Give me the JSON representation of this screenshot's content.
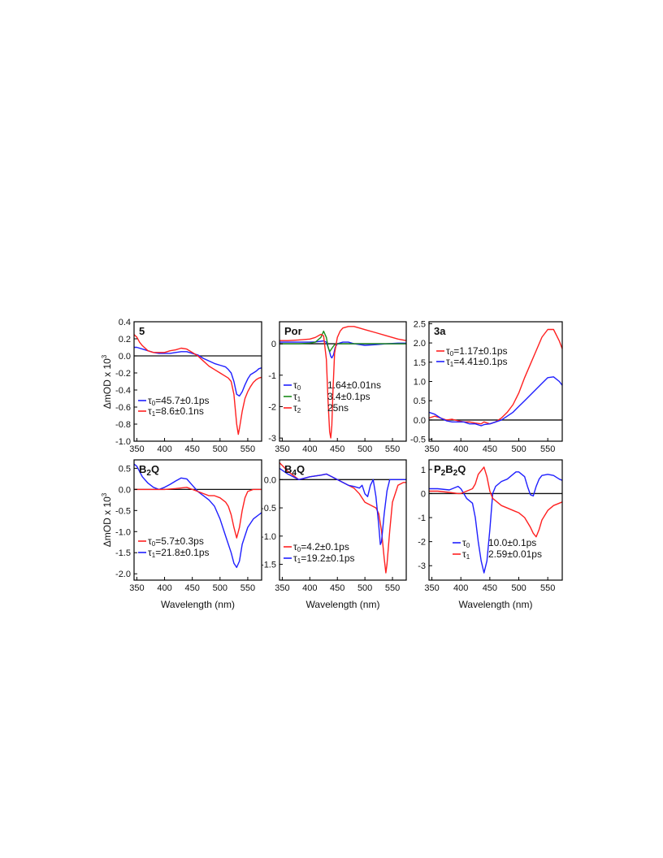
{
  "figure": {
    "y_axis_label": "ΔmOD x 10",
    "y_axis_label_sup": "3",
    "x_axis_label": "Wavelength (nm)"
  },
  "chart_data": [
    {
      "type": "line",
      "title": "5",
      "xlim": [
        345,
        575
      ],
      "ylim": [
        -1.0,
        0.4
      ],
      "xticks": [
        350,
        400,
        450,
        500,
        550
      ],
      "yticks": [
        0.4,
        0.2,
        0.0,
        -0.2,
        -0.4,
        -0.6,
        -0.8,
        -1.0
      ],
      "ytick_labels": [
        "0.4",
        "0.2",
        "0.0",
        "-0.2",
        "-0.4",
        "-0.6",
        "-0.8",
        "-1.0"
      ],
      "legend": [
        {
          "symbol": "τ",
          "sub": "0",
          "text": "=45.7±0.1ps",
          "color": "#1f1fff"
        },
        {
          "symbol": "τ",
          "sub": "1",
          "text": "=8.6±0.1ns",
          "color": "#ff2020"
        }
      ],
      "series": [
        {
          "color": "#1f1fff",
          "x": [
            345,
            350,
            360,
            370,
            380,
            390,
            400,
            410,
            420,
            430,
            440,
            450,
            460,
            470,
            480,
            490,
            500,
            510,
            515,
            520,
            525,
            530,
            535,
            540,
            545,
            550,
            555,
            560,
            565,
            570,
            575
          ],
          "y": [
            0.1,
            0.1,
            0.08,
            0.06,
            0.04,
            0.03,
            0.03,
            0.03,
            0.04,
            0.05,
            0.05,
            0.03,
            0.01,
            -0.03,
            -0.06,
            -0.09,
            -0.11,
            -0.13,
            -0.16,
            -0.2,
            -0.3,
            -0.45,
            -0.47,
            -0.42,
            -0.34,
            -0.27,
            -0.22,
            -0.2,
            -0.18,
            -0.15,
            -0.14
          ]
        },
        {
          "color": "#ff2020",
          "x": [
            345,
            350,
            355,
            360,
            370,
            380,
            390,
            400,
            410,
            420,
            430,
            440,
            450,
            460,
            470,
            480,
            490,
            500,
            510,
            515,
            520,
            525,
            530,
            533,
            535,
            540,
            545,
            550,
            555,
            560,
            565,
            570,
            575
          ],
          "y": [
            0.25,
            0.22,
            0.16,
            0.12,
            0.06,
            0.04,
            0.04,
            0.04,
            0.06,
            0.07,
            0.09,
            0.08,
            0.04,
            0.0,
            -0.06,
            -0.12,
            -0.16,
            -0.2,
            -0.24,
            -0.26,
            -0.3,
            -0.45,
            -0.8,
            -0.92,
            -0.85,
            -0.65,
            -0.5,
            -0.42,
            -0.36,
            -0.31,
            -0.28,
            -0.26,
            -0.25
          ]
        }
      ]
    },
    {
      "type": "line",
      "title": "Por",
      "xlim": [
        345,
        575
      ],
      "ylim": [
        -3.1,
        0.7
      ],
      "xticks": [
        350,
        400,
        450,
        500,
        550
      ],
      "yticks": [
        0,
        -1,
        -2,
        -3
      ],
      "ytick_labels": [
        "0",
        "-1",
        "-2",
        "-3"
      ],
      "legend": [
        {
          "symbol": "τ",
          "sub": "0",
          "text": "1.64±0.01ns",
          "color": "#1f1fff"
        },
        {
          "symbol": "τ",
          "sub": "1",
          "text": "3.4±0.1ps",
          "color": "#1a8a1a"
        },
        {
          "symbol": "τ",
          "sub": "2",
          "text": "25ns",
          "color": "#ff2020"
        }
      ],
      "series": [
        {
          "color": "#1f1fff",
          "x": [
            345,
            360,
            380,
            400,
            410,
            420,
            425,
            430,
            435,
            438,
            440,
            443,
            446,
            450,
            460,
            470,
            480,
            500,
            520,
            540,
            560,
            575
          ],
          "y": [
            0.05,
            0.05,
            0.05,
            0.05,
            0.06,
            0.08,
            0.09,
            0.05,
            -0.2,
            -0.4,
            -0.45,
            -0.35,
            -0.12,
            0.0,
            0.05,
            0.05,
            0.0,
            -0.05,
            -0.03,
            0.0,
            0.02,
            0.02
          ]
        },
        {
          "color": "#1a8a1a",
          "x": [
            345,
            380,
            400,
            410,
            420,
            425,
            430,
            433,
            436,
            440,
            444,
            448,
            455,
            470,
            500,
            530,
            575
          ],
          "y": [
            0.0,
            0.0,
            0.02,
            0.05,
            0.2,
            0.4,
            0.2,
            -0.1,
            -0.25,
            -0.15,
            -0.05,
            0.0,
            0.0,
            0.0,
            0.0,
            0.0,
            0.0
          ]
        },
        {
          "color": "#ff2020",
          "x": [
            345,
            360,
            380,
            400,
            410,
            420,
            425,
            430,
            433,
            436,
            438,
            440,
            442,
            445,
            450,
            455,
            460,
            470,
            480,
            490,
            500,
            520,
            540,
            560,
            575
          ],
          "y": [
            0.1,
            0.1,
            0.12,
            0.15,
            0.2,
            0.3,
            0.25,
            -0.5,
            -1.8,
            -2.8,
            -3.0,
            -2.6,
            -1.5,
            -0.3,
            0.2,
            0.4,
            0.5,
            0.55,
            0.55,
            0.5,
            0.45,
            0.35,
            0.25,
            0.15,
            0.1
          ]
        }
      ]
    },
    {
      "type": "line",
      "title": "3a",
      "xlim": [
        345,
        575
      ],
      "ylim": [
        -0.55,
        2.55
      ],
      "xticks": [
        350,
        400,
        450,
        500,
        550
      ],
      "yticks": [
        2.5,
        2.0,
        1.5,
        1.0,
        0.5,
        0.0,
        -0.5
      ],
      "ytick_labels": [
        "2.5",
        "2.0",
        "1.5",
        "1.0",
        "0.5",
        "0.0",
        "-0.5"
      ],
      "legend": [
        {
          "symbol": "τ",
          "sub": "0",
          "text": "=1.17±0.1ps",
          "color": "#ff2020"
        },
        {
          "symbol": "τ",
          "sub": "1",
          "text": "=4.41±0.1ps",
          "color": "#1f1fff"
        }
      ],
      "series": [
        {
          "color": "#ff2020",
          "x": [
            345,
            355,
            365,
            375,
            385,
            395,
            405,
            415,
            425,
            435,
            440,
            450,
            460,
            470,
            480,
            490,
            500,
            510,
            520,
            530,
            540,
            550,
            560,
            570,
            575
          ],
          "y": [
            0.05,
            0.1,
            0.05,
            0.0,
            0.02,
            -0.02,
            -0.05,
            -0.05,
            -0.08,
            -0.1,
            -0.05,
            -0.1,
            -0.05,
            0.05,
            0.2,
            0.4,
            0.7,
            1.1,
            1.45,
            1.8,
            2.15,
            2.35,
            2.35,
            2.05,
            1.85
          ]
        },
        {
          "color": "#1f1fff",
          "x": [
            345,
            355,
            365,
            375,
            385,
            395,
            405,
            415,
            425,
            435,
            440,
            450,
            460,
            470,
            480,
            490,
            500,
            510,
            520,
            530,
            540,
            550,
            560,
            570,
            575
          ],
          "y": [
            0.2,
            0.15,
            0.05,
            -0.02,
            -0.05,
            -0.05,
            -0.05,
            -0.1,
            -0.1,
            -0.15,
            -0.12,
            -0.1,
            -0.05,
            0.0,
            0.1,
            0.2,
            0.35,
            0.5,
            0.65,
            0.8,
            0.95,
            1.1,
            1.12,
            1.0,
            0.9
          ]
        }
      ]
    },
    {
      "type": "line",
      "title": "B2Q",
      "xlim": [
        345,
        575
      ],
      "ylim": [
        -2.15,
        0.7
      ],
      "xticks": [
        350,
        400,
        450,
        500,
        550
      ],
      "yticks": [
        0.5,
        0.0,
        -0.5,
        -1.0,
        -1.5,
        -2.0
      ],
      "ytick_labels": [
        "0.5",
        "0.0",
        "-0.5",
        "-1.0",
        "-1.5",
        "-2.0"
      ],
      "legend": [
        {
          "symbol": "τ",
          "sub": "0",
          "text": "=5.7±0.3ps",
          "color": "#ff2020"
        },
        {
          "symbol": "τ",
          "sub": "1",
          "text": "=21.8±0.1ps",
          "color": "#1f1fff"
        }
      ],
      "series": [
        {
          "color": "#1f1fff",
          "x": [
            345,
            350,
            360,
            370,
            380,
            390,
            400,
            410,
            420,
            430,
            440,
            450,
            460,
            470,
            480,
            490,
            500,
            510,
            520,
            525,
            530,
            535,
            540,
            550,
            560,
            570,
            575
          ],
          "y": [
            0.6,
            0.55,
            0.3,
            0.15,
            0.05,
            0.0,
            0.05,
            0.12,
            0.2,
            0.27,
            0.25,
            0.1,
            -0.05,
            -0.15,
            -0.25,
            -0.4,
            -0.7,
            -1.1,
            -1.5,
            -1.75,
            -1.85,
            -1.7,
            -1.3,
            -0.9,
            -0.7,
            -0.6,
            -0.55
          ]
        },
        {
          "color": "#ff2020",
          "x": [
            345,
            360,
            380,
            400,
            420,
            440,
            450,
            460,
            470,
            480,
            490,
            500,
            510,
            515,
            520,
            525,
            530,
            535,
            540,
            545,
            550,
            560,
            570,
            575
          ],
          "y": [
            0.0,
            0.0,
            0.0,
            0.0,
            0.02,
            0.05,
            0.0,
            -0.05,
            -0.1,
            -0.15,
            -0.15,
            -0.2,
            -0.3,
            -0.4,
            -0.6,
            -0.9,
            -1.15,
            -0.9,
            -0.5,
            -0.2,
            -0.05,
            0.0,
            0.0,
            0.0
          ]
        }
      ]
    },
    {
      "type": "line",
      "title": "B4Q",
      "xlim": [
        345,
        575
      ],
      "ylim": [
        -1.78,
        0.35
      ],
      "xticks": [
        350,
        400,
        450,
        500,
        550
      ],
      "yticks": [
        0.0,
        -0.5,
        -1.0,
        -1.5
      ],
      "ytick_labels": [
        "0.0",
        "-0.5",
        "-1.0",
        "-1.5"
      ],
      "legend": [
        {
          "symbol": "τ",
          "sub": "0",
          "text": "=4.2±0.1ps",
          "color": "#ff2020"
        },
        {
          "symbol": "τ",
          "sub": "1",
          "text": "=19.2±0.1ps",
          "color": "#1f1fff"
        }
      ],
      "series": [
        {
          "color": "#ff2020",
          "x": [
            345,
            360,
            380,
            400,
            420,
            430,
            440,
            450,
            460,
            470,
            480,
            490,
            500,
            510,
            520,
            525,
            530,
            535,
            538,
            540,
            545,
            550,
            560,
            570,
            575
          ],
          "y": [
            0.3,
            0.15,
            0.0,
            0.05,
            0.08,
            0.1,
            0.05,
            0.0,
            -0.05,
            -0.1,
            -0.15,
            -0.25,
            -0.4,
            -0.45,
            -0.5,
            -0.6,
            -0.9,
            -1.4,
            -1.65,
            -1.5,
            -0.9,
            -0.4,
            -0.1,
            -0.05,
            -0.05
          ]
        },
        {
          "color": "#1f1fff",
          "x": [
            345,
            360,
            380,
            400,
            420,
            430,
            440,
            450,
            460,
            470,
            480,
            490,
            495,
            500,
            505,
            510,
            515,
            520,
            525,
            528,
            530,
            535,
            540,
            545,
            550,
            560,
            575
          ],
          "y": [
            0.2,
            0.1,
            0.0,
            0.05,
            0.08,
            0.1,
            0.05,
            0.0,
            -0.05,
            -0.1,
            -0.12,
            -0.15,
            -0.1,
            -0.25,
            -0.3,
            -0.1,
            0.0,
            -0.3,
            -0.8,
            -1.15,
            -1.1,
            -0.6,
            -0.2,
            0.0,
            0.0,
            0.0,
            0.0
          ]
        }
      ]
    },
    {
      "type": "line",
      "title": "P2B2Q",
      "xlim": [
        345,
        575
      ],
      "ylim": [
        -3.6,
        1.4
      ],
      "xticks": [
        350,
        400,
        450,
        500,
        550
      ],
      "yticks": [
        1,
        0,
        -1,
        -2,
        -3
      ],
      "ytick_labels": [
        "1",
        "0",
        "-1",
        "-2",
        "-3"
      ],
      "legend": [
        {
          "symbol": "τ",
          "sub": "0",
          "text": "10.0±0.1ps",
          "color": "#1f1fff"
        },
        {
          "symbol": "τ",
          "sub": "1",
          "text": "2.59±0.01ps",
          "color": "#ff2020"
        }
      ],
      "series": [
        {
          "color": "#1f1fff",
          "x": [
            345,
            360,
            380,
            395,
            400,
            405,
            410,
            420,
            425,
            430,
            435,
            440,
            445,
            450,
            455,
            460,
            470,
            480,
            490,
            495,
            500,
            510,
            515,
            520,
            525,
            530,
            535,
            540,
            550,
            560,
            570,
            575
          ],
          "y": [
            0.2,
            0.2,
            0.15,
            0.3,
            0.2,
            0.0,
            -0.2,
            -0.4,
            -1.0,
            -2.0,
            -2.8,
            -3.3,
            -2.8,
            -1.5,
            0.0,
            0.3,
            0.5,
            0.6,
            0.8,
            0.9,
            0.9,
            0.7,
            0.3,
            -0.05,
            -0.1,
            0.3,
            0.6,
            0.75,
            0.8,
            0.75,
            0.6,
            0.55
          ]
        },
        {
          "color": "#ff2020",
          "x": [
            345,
            360,
            380,
            395,
            400,
            410,
            420,
            425,
            430,
            440,
            445,
            450,
            455,
            460,
            470,
            480,
            490,
            500,
            510,
            520,
            525,
            530,
            535,
            540,
            550,
            560,
            570,
            575
          ],
          "y": [
            0.1,
            0.1,
            0.05,
            0.0,
            0.0,
            0.1,
            0.2,
            0.4,
            0.8,
            1.1,
            0.7,
            0.1,
            -0.2,
            -0.3,
            -0.5,
            -0.6,
            -0.7,
            -0.8,
            -1.0,
            -1.4,
            -1.65,
            -1.8,
            -1.5,
            -1.1,
            -0.7,
            -0.5,
            -0.4,
            -0.35
          ]
        }
      ]
    }
  ]
}
